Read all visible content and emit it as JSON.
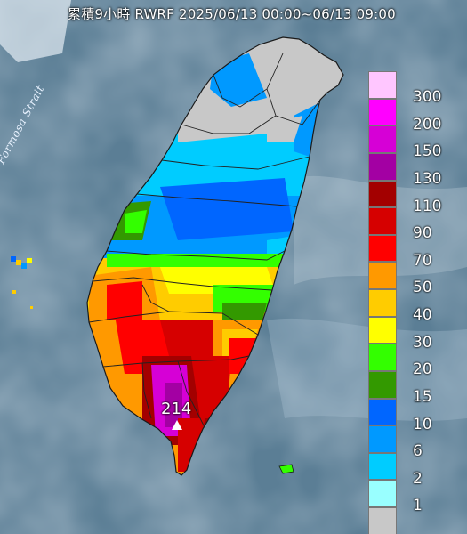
{
  "header": {
    "title": "累積9小時 RWRF 2025/06/13 00:00~06/13 09:00"
  },
  "map": {
    "sea_label": "Formosa Strait",
    "peak_value": "214",
    "colors": {
      "sea": "#5b7e95",
      "no_rain": "#c8c8c8",
      "boundary": "#1a1a1a"
    }
  },
  "legend": {
    "items": [
      {
        "label": "300",
        "color": "#ffc6ff"
      },
      {
        "label": "200",
        "color": "#ff00ff"
      },
      {
        "label": "150",
        "color": "#d600d6"
      },
      {
        "label": "130",
        "color": "#a300a3"
      },
      {
        "label": "110",
        "color": "#a30000"
      },
      {
        "label": "90",
        "color": "#d60000"
      },
      {
        "label": "70",
        "color": "#ff0000"
      },
      {
        "label": "50",
        "color": "#ff9900"
      },
      {
        "label": "40",
        "color": "#ffcc00"
      },
      {
        "label": "30",
        "color": "#ffff00"
      },
      {
        "label": "20",
        "color": "#33ff00"
      },
      {
        "label": "15",
        "color": "#339900"
      },
      {
        "label": "10",
        "color": "#0066ff"
      },
      {
        "label": "6",
        "color": "#0099ff"
      },
      {
        "label": "2",
        "color": "#00ccff"
      },
      {
        "label": "1",
        "color": "#99ffff"
      },
      {
        "label": "",
        "color": "#c8c8c8"
      }
    ]
  }
}
